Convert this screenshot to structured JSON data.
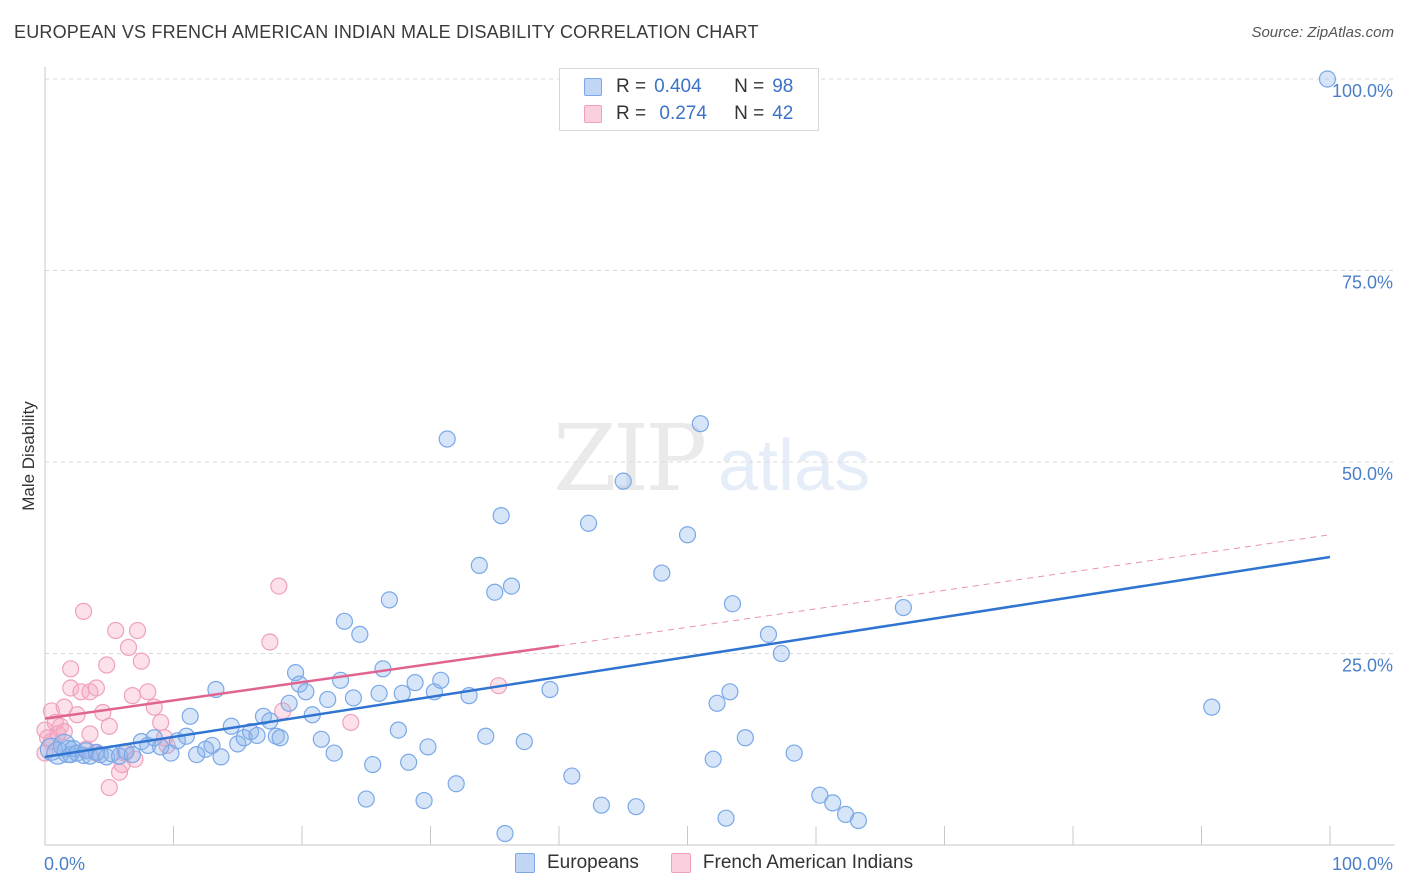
{
  "title": "EUROPEAN VS FRENCH AMERICAN INDIAN MALE DISABILITY CORRELATION CHART",
  "source": "Source: ZipAtlas.com",
  "watermark": {
    "zip": "ZIP",
    "atlas": "atlas"
  },
  "colors": {
    "blue": "#7aa8e8",
    "blue_fill": "rgba(140,180,235,0.35)",
    "blue_line": "#2f74d0",
    "pink": "#f0a0bd",
    "pink_fill": "rgba(245,170,195,0.35)",
    "pink_line": "#e0648f",
    "grid": "#d9d9d9",
    "tick_label": "#4a7fc8"
  },
  "legend": {
    "rows": [
      {
        "r_label": "R =",
        "r_value": "0.404",
        "n_label": "N =",
        "n_value": "98"
      },
      {
        "r_label": "R =",
        "r_value": " 0.274",
        "n_label": "N =",
        "n_value": "42"
      }
    ]
  },
  "bottom_legend": {
    "series1": "Europeans",
    "series2": "French American Indians"
  },
  "chart_data": {
    "type": "scatter",
    "ylabel": "Male Disability",
    "xlim": [
      0,
      100
    ],
    "ylim": [
      0,
      102
    ],
    "x_tick_labels": {
      "left": "0.0%",
      "right": "100.0%"
    },
    "y_ticks": [
      {
        "value": 100,
        "label": "100.0%"
      },
      {
        "value": 75,
        "label": "75.0%"
      },
      {
        "value": 50,
        "label": "50.0%"
      },
      {
        "value": 25,
        "label": "25.0%"
      }
    ],
    "grid": "horizontal dashed",
    "legend_position": "top-center",
    "series": [
      {
        "name": "Europeans",
        "color": "blue",
        "trend": {
          "x0": 0,
          "y0": 11.5,
          "x1": 100,
          "y1": 37.6
        },
        "points": [
          [
            0.5,
            12.5
          ],
          [
            1.0,
            12.0
          ],
          [
            1.5,
            13.0
          ],
          [
            1.8,
            12.2
          ],
          [
            2.0,
            11.8
          ],
          [
            2.2,
            12.6
          ],
          [
            2.5,
            12.0
          ],
          [
            3.0,
            11.7
          ],
          [
            3.2,
            12.3
          ],
          [
            3.5,
            11.6
          ],
          [
            4.0,
            12.1
          ],
          [
            4.3,
            11.8
          ],
          [
            4.8,
            11.5
          ],
          [
            5.2,
            11.9
          ],
          [
            5.8,
            11.6
          ],
          [
            6.3,
            12.2
          ],
          [
            6.8,
            11.8
          ],
          [
            7.5,
            13.5
          ],
          [
            8.0,
            13.0
          ],
          [
            8.5,
            14.0
          ],
          [
            9.0,
            12.8
          ],
          [
            9.8,
            12.0
          ],
          [
            10.3,
            13.6
          ],
          [
            11.0,
            14.2
          ],
          [
            11.3,
            16.8
          ],
          [
            11.8,
            11.8
          ],
          [
            12.5,
            12.5
          ],
          [
            13.0,
            13.0
          ],
          [
            13.3,
            20.3
          ],
          [
            13.7,
            11.5
          ],
          [
            14.5,
            15.5
          ],
          [
            15.0,
            13.2
          ],
          [
            15.5,
            14.0
          ],
          [
            16.0,
            14.8
          ],
          [
            16.5,
            14.3
          ],
          [
            17.0,
            16.8
          ],
          [
            17.5,
            16.2
          ],
          [
            18.0,
            14.2
          ],
          [
            18.3,
            14.0
          ],
          [
            19.0,
            18.5
          ],
          [
            19.5,
            22.5
          ],
          [
            19.8,
            21.0
          ],
          [
            20.3,
            20.0
          ],
          [
            20.8,
            17.0
          ],
          [
            21.5,
            13.8
          ],
          [
            22.0,
            19.0
          ],
          [
            22.5,
            12.0
          ],
          [
            23.0,
            21.5
          ],
          [
            23.3,
            29.2
          ],
          [
            24.0,
            19.2
          ],
          [
            24.5,
            27.5
          ],
          [
            25.0,
            6.0
          ],
          [
            25.5,
            10.5
          ],
          [
            26.0,
            19.8
          ],
          [
            26.3,
            23.0
          ],
          [
            26.8,
            32.0
          ],
          [
            27.5,
            15.0
          ],
          [
            27.8,
            19.8
          ],
          [
            28.3,
            10.8
          ],
          [
            28.8,
            21.2
          ],
          [
            29.5,
            5.8
          ],
          [
            29.8,
            12.8
          ],
          [
            30.3,
            20.0
          ],
          [
            30.8,
            21.5
          ],
          [
            31.3,
            53.0
          ],
          [
            32.0,
            8.0
          ],
          [
            33.0,
            19.5
          ],
          [
            33.8,
            36.5
          ],
          [
            34.3,
            14.2
          ],
          [
            35.0,
            33.0
          ],
          [
            35.5,
            43.0
          ],
          [
            35.8,
            1.5
          ],
          [
            36.3,
            33.8
          ],
          [
            37.3,
            13.5
          ],
          [
            39.3,
            20.3
          ],
          [
            41.0,
            9.0
          ],
          [
            42.3,
            42.0
          ],
          [
            43.3,
            5.2
          ],
          [
            45.0,
            47.5
          ],
          [
            46.0,
            5.0
          ],
          [
            48.0,
            35.5
          ],
          [
            50.0,
            40.5
          ],
          [
            51.0,
            55.0
          ],
          [
            52.0,
            11.2
          ],
          [
            52.3,
            18.5
          ],
          [
            53.0,
            3.5
          ],
          [
            53.3,
            20.0
          ],
          [
            53.5,
            31.5
          ],
          [
            54.5,
            14.0
          ],
          [
            56.3,
            27.5
          ],
          [
            57.3,
            25.0
          ],
          [
            58.3,
            12.0
          ],
          [
            60.3,
            6.5
          ],
          [
            61.3,
            5.5
          ],
          [
            62.3,
            4.0
          ],
          [
            63.3,
            3.2
          ],
          [
            66.8,
            31.0
          ],
          [
            90.8,
            18.0
          ],
          [
            99.8,
            100.0
          ]
        ]
      },
      {
        "name": "French American Indians",
        "color": "pink",
        "trend": {
          "x0": 0,
          "y0": 16.5,
          "x1": 40,
          "y1": 26.0,
          "dash_x1": 100,
          "dash_y1": 40.5
        },
        "points": [
          [
            0.0,
            12.0
          ],
          [
            0.0,
            15.0
          ],
          [
            0.2,
            14.0
          ],
          [
            0.5,
            13.5
          ],
          [
            0.5,
            17.5
          ],
          [
            0.8,
            16.0
          ],
          [
            1.0,
            14.5
          ],
          [
            1.2,
            15.5
          ],
          [
            1.5,
            18.0
          ],
          [
            1.5,
            14.8
          ],
          [
            2.0,
            20.5
          ],
          [
            2.0,
            23.0
          ],
          [
            2.5,
            17.0
          ],
          [
            2.8,
            20.0
          ],
          [
            3.0,
            30.5
          ],
          [
            3.2,
            12.5
          ],
          [
            3.5,
            14.5
          ],
          [
            3.5,
            20.0
          ],
          [
            4.0,
            20.5
          ],
          [
            4.0,
            12.0
          ],
          [
            4.5,
            17.3
          ],
          [
            4.8,
            23.5
          ],
          [
            5.0,
            7.5
          ],
          [
            5.0,
            15.5
          ],
          [
            5.5,
            28.0
          ],
          [
            5.8,
            9.5
          ],
          [
            6.0,
            10.5
          ],
          [
            6.2,
            12.0
          ],
          [
            6.5,
            25.8
          ],
          [
            6.8,
            19.5
          ],
          [
            7.0,
            11.2
          ],
          [
            7.2,
            28.0
          ],
          [
            7.5,
            24.0
          ],
          [
            8.0,
            20.0
          ],
          [
            8.5,
            18.0
          ],
          [
            9.0,
            16.0
          ],
          [
            9.3,
            14.0
          ],
          [
            9.5,
            13.0
          ],
          [
            17.5,
            26.5
          ],
          [
            18.2,
            33.8
          ],
          [
            18.5,
            17.5
          ],
          [
            23.8,
            16.0
          ],
          [
            35.3,
            20.8
          ]
        ]
      }
    ]
  }
}
